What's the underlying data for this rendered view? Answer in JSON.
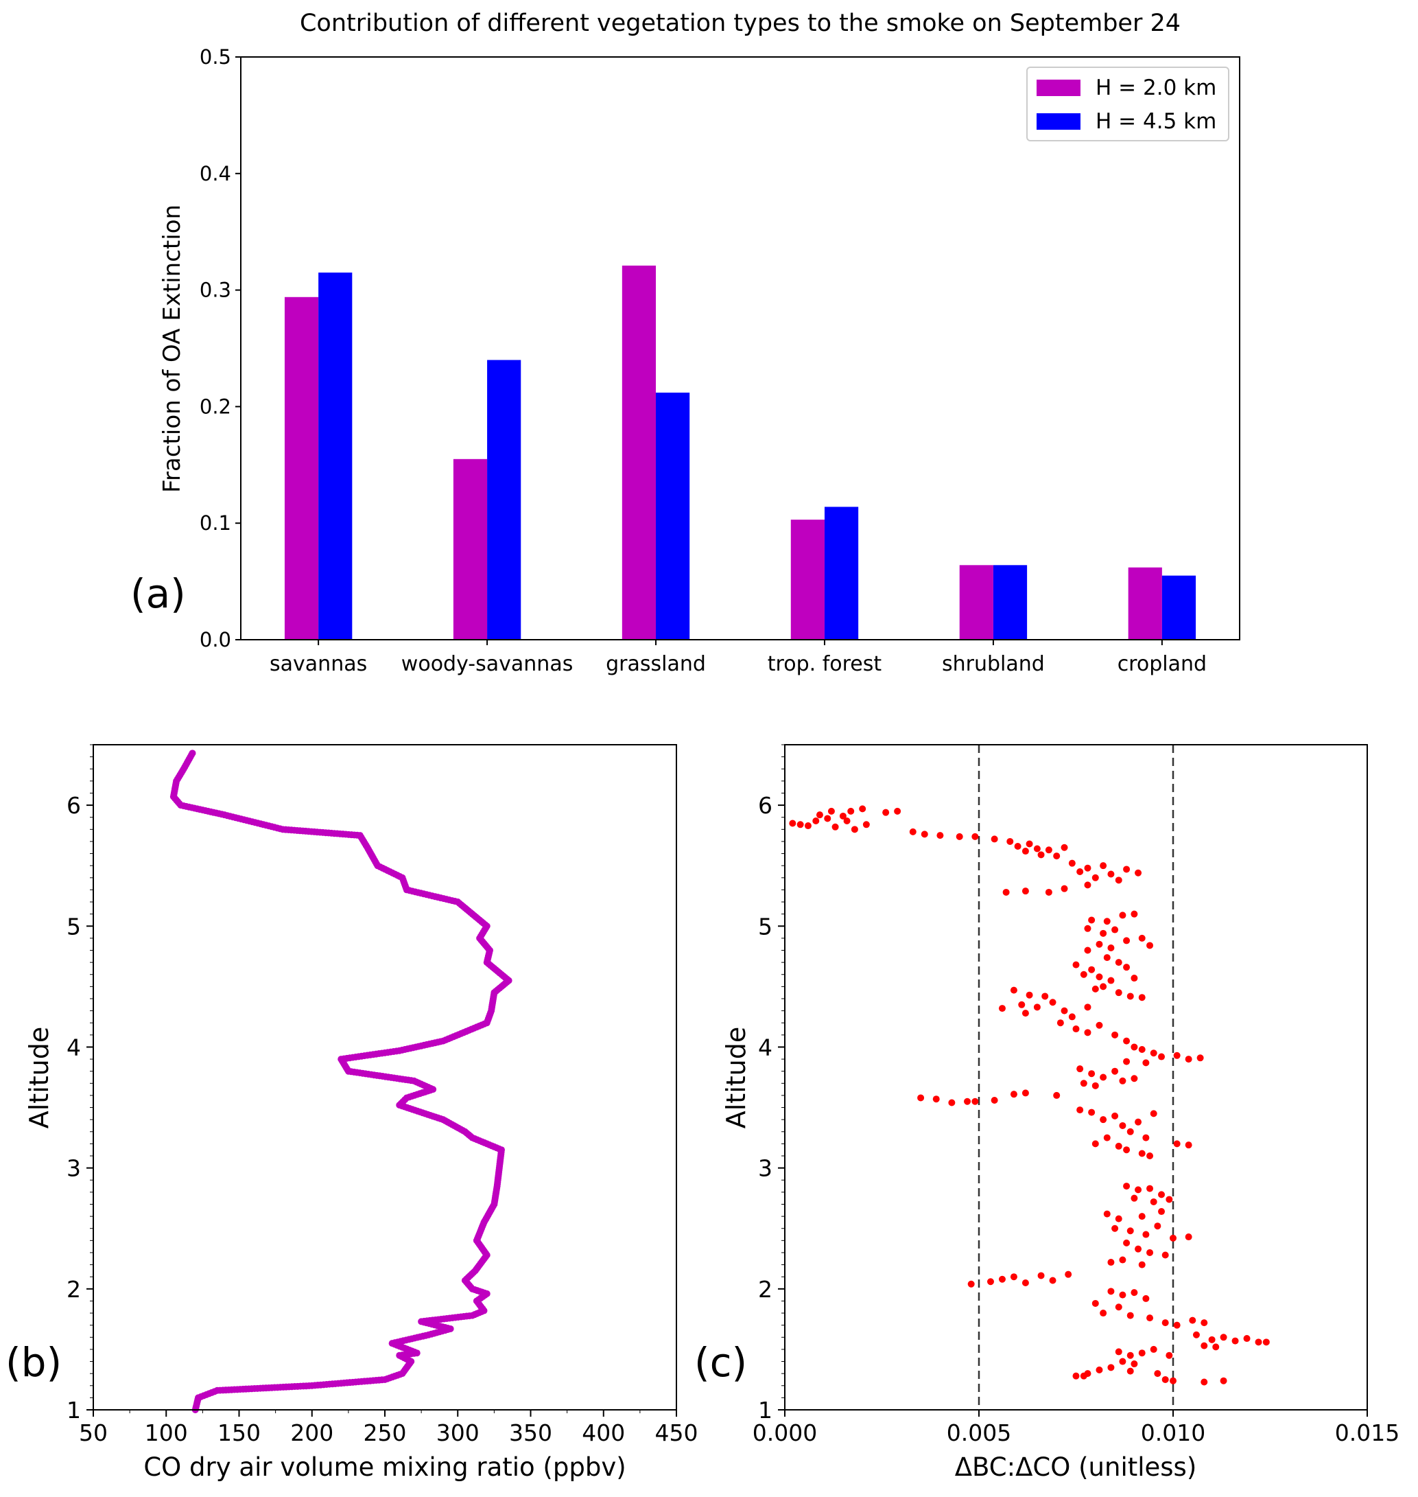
{
  "chart_data": [
    {
      "panel": "(a)",
      "type": "bar",
      "title": "Contribution of different vegetation types to the smoke on September 24",
      "xlabel": "",
      "ylabel": "Fraction of OA Extinction",
      "categories": [
        "savannas",
        "woody-savannas",
        "grassland",
        "trop. forest",
        "shrubland",
        "cropland"
      ],
      "series": [
        {
          "name": "H = 2.0 km",
          "color": "#bf00bf",
          "values": [
            0.294,
            0.155,
            0.321,
            0.103,
            0.064,
            0.062
          ]
        },
        {
          "name": "H = 4.5 km",
          "color": "#0000ff",
          "values": [
            0.315,
            0.24,
            0.212,
            0.114,
            0.064,
            0.055
          ]
        }
      ],
      "ylim": [
        0,
        0.5
      ],
      "yticks": [
        "0.0",
        "0.1",
        "0.2",
        "0.3",
        "0.4",
        "0.5"
      ],
      "legend": "top-right",
      "grid": false
    },
    {
      "panel": "(b)",
      "type": "scatter",
      "xlabel": "CO dry air volume mixing ratio (ppbv)",
      "ylabel": "Altitude",
      "color": "#bf00bf",
      "xlim": [
        50,
        450
      ],
      "ylim": [
        1,
        6.5
      ],
      "xticks": [
        "50",
        "100",
        "150",
        "200",
        "250",
        "300",
        "350",
        "400",
        "450"
      ],
      "yticks": [
        "1",
        "2",
        "3",
        "4",
        "5",
        "6"
      ],
      "profile": [
        [
          120,
          1.0
        ],
        [
          122,
          1.1
        ],
        [
          135,
          1.16
        ],
        [
          200,
          1.2
        ],
        [
          250,
          1.25
        ],
        [
          262,
          1.3
        ],
        [
          268,
          1.4
        ],
        [
          260,
          1.45
        ],
        [
          272,
          1.47
        ],
        [
          255,
          1.55
        ],
        [
          280,
          1.62
        ],
        [
          295,
          1.67
        ],
        [
          275,
          1.73
        ],
        [
          310,
          1.78
        ],
        [
          318,
          1.82
        ],
        [
          313,
          1.9
        ],
        [
          320,
          1.96
        ],
        [
          310,
          2.0
        ],
        [
          305,
          2.07
        ],
        [
          312,
          2.15
        ],
        [
          320,
          2.28
        ],
        [
          313,
          2.4
        ],
        [
          318,
          2.55
        ],
        [
          325,
          2.7
        ],
        [
          327,
          2.85
        ],
        [
          330,
          3.15
        ],
        [
          320,
          3.2
        ],
        [
          310,
          3.25
        ],
        [
          305,
          3.3
        ],
        [
          290,
          3.4
        ],
        [
          260,
          3.52
        ],
        [
          265,
          3.58
        ],
        [
          283,
          3.65
        ],
        [
          270,
          3.72
        ],
        [
          225,
          3.8
        ],
        [
          220,
          3.9
        ],
        [
          260,
          3.97
        ],
        [
          290,
          4.05
        ],
        [
          320,
          4.2
        ],
        [
          323,
          4.3
        ],
        [
          325,
          4.45
        ],
        [
          335,
          4.55
        ],
        [
          320,
          4.7
        ],
        [
          322,
          4.8
        ],
        [
          315,
          4.9
        ],
        [
          320,
          5.0
        ],
        [
          305,
          5.15
        ],
        [
          300,
          5.2
        ],
        [
          265,
          5.3
        ],
        [
          262,
          5.4
        ],
        [
          245,
          5.5
        ],
        [
          238,
          5.65
        ],
        [
          233,
          5.75
        ],
        [
          180,
          5.8
        ],
        [
          140,
          5.92
        ],
        [
          110,
          6.0
        ],
        [
          105,
          6.07
        ],
        [
          107,
          6.2
        ],
        [
          112,
          6.3
        ],
        [
          118,
          6.43
        ]
      ]
    },
    {
      "panel": "(c)",
      "type": "scatter",
      "xlabel": "ΔBC:ΔCO (unitless)",
      "ylabel": "Altitude",
      "color": "#ff0000",
      "xlim": [
        0,
        0.015
      ],
      "ylim": [
        1,
        6.5
      ],
      "xticks": [
        "0.000",
        "0.005",
        "0.010",
        "0.015"
      ],
      "yticks": [
        "1",
        "2",
        "3",
        "4",
        "5",
        "6"
      ],
      "reference_lines_x": [
        0.005,
        0.01
      ],
      "points": [
        [
          0.0002,
          5.85
        ],
        [
          0.0004,
          5.84
        ],
        [
          0.0006,
          5.83
        ],
        [
          0.0008,
          5.87
        ],
        [
          0.0009,
          5.92
        ],
        [
          0.0011,
          5.89
        ],
        [
          0.0012,
          5.95
        ],
        [
          0.0013,
          5.82
        ],
        [
          0.0015,
          5.91
        ],
        [
          0.0016,
          5.87
        ],
        [
          0.0017,
          5.95
        ],
        [
          0.0018,
          5.8
        ],
        [
          0.002,
          5.97
        ],
        [
          0.0021,
          5.84
        ],
        [
          0.0026,
          5.94
        ],
        [
          0.0029,
          5.95
        ],
        [
          0.0033,
          5.78
        ],
        [
          0.0036,
          5.76
        ],
        [
          0.004,
          5.75
        ],
        [
          0.0045,
          5.74
        ],
        [
          0.0049,
          5.74
        ],
        [
          0.0054,
          5.72
        ],
        [
          0.0058,
          5.7
        ],
        [
          0.006,
          5.66
        ],
        [
          0.0062,
          5.62
        ],
        [
          0.0063,
          5.68
        ],
        [
          0.0065,
          5.64
        ],
        [
          0.0066,
          5.59
        ],
        [
          0.0068,
          5.63
        ],
        [
          0.007,
          5.58
        ],
        [
          0.0072,
          5.65
        ],
        [
          0.0074,
          5.52
        ],
        [
          0.0076,
          5.45
        ],
        [
          0.0078,
          5.48
        ],
        [
          0.008,
          5.4
        ],
        [
          0.0082,
          5.5
        ],
        [
          0.0084,
          5.43
        ],
        [
          0.0086,
          5.38
        ],
        [
          0.0088,
          5.47
        ],
        [
          0.0091,
          5.44
        ],
        [
          0.0057,
          5.28
        ],
        [
          0.0062,
          5.29
        ],
        [
          0.0068,
          5.28
        ],
        [
          0.0072,
          5.31
        ],
        [
          0.0078,
          5.34
        ],
        [
          0.0079,
          5.05
        ],
        [
          0.0083,
          5.04
        ],
        [
          0.0087,
          5.09
        ],
        [
          0.009,
          5.1
        ],
        [
          0.0078,
          4.98
        ],
        [
          0.0082,
          4.94
        ],
        [
          0.0085,
          4.97
        ],
        [
          0.0088,
          4.88
        ],
        [
          0.0081,
          4.85
        ],
        [
          0.0084,
          4.82
        ],
        [
          0.0092,
          4.9
        ],
        [
          0.0094,
          4.84
        ],
        [
          0.0078,
          4.8
        ],
        [
          0.0083,
          4.74
        ],
        [
          0.0086,
          4.7
        ],
        [
          0.0075,
          4.68
        ],
        [
          0.0079,
          4.64
        ],
        [
          0.0081,
          4.58
        ],
        [
          0.0084,
          4.55
        ],
        [
          0.0077,
          4.6
        ],
        [
          0.0088,
          4.66
        ],
        [
          0.009,
          4.57
        ],
        [
          0.0082,
          4.5
        ],
        [
          0.0086,
          4.45
        ],
        [
          0.0089,
          4.42
        ],
        [
          0.0092,
          4.41
        ],
        [
          0.008,
          4.48
        ],
        [
          0.0059,
          4.47
        ],
        [
          0.0063,
          4.43
        ],
        [
          0.0067,
          4.42
        ],
        [
          0.0056,
          4.32
        ],
        [
          0.0061,
          4.35
        ],
        [
          0.0062,
          4.28
        ],
        [
          0.0065,
          4.33
        ],
        [
          0.0069,
          4.37
        ],
        [
          0.0072,
          4.3
        ],
        [
          0.0074,
          4.25
        ],
        [
          0.0078,
          4.33
        ],
        [
          0.0071,
          4.2
        ],
        [
          0.0075,
          4.15
        ],
        [
          0.0078,
          4.12
        ],
        [
          0.0081,
          4.18
        ],
        [
          0.0085,
          4.1
        ],
        [
          0.0088,
          4.05
        ],
        [
          0.009,
          4.0
        ],
        [
          0.0092,
          3.98
        ],
        [
          0.0095,
          3.95
        ],
        [
          0.0097,
          3.92
        ],
        [
          0.0101,
          3.93
        ],
        [
          0.0104,
          3.9
        ],
        [
          0.0107,
          3.91
        ],
        [
          0.0088,
          3.88
        ],
        [
          0.0093,
          3.87
        ],
        [
          0.0076,
          3.82
        ],
        [
          0.0079,
          3.78
        ],
        [
          0.0082,
          3.75
        ],
        [
          0.0085,
          3.8
        ],
        [
          0.0087,
          3.72
        ],
        [
          0.0077,
          3.7
        ],
        [
          0.008,
          3.68
        ],
        [
          0.009,
          3.74
        ],
        [
          0.0035,
          3.58
        ],
        [
          0.0039,
          3.57
        ],
        [
          0.0043,
          3.54
        ],
        [
          0.0047,
          3.55
        ],
        [
          0.0049,
          3.55
        ],
        [
          0.0054,
          3.56
        ],
        [
          0.0059,
          3.61
        ],
        [
          0.0062,
          3.62
        ],
        [
          0.007,
          3.6
        ],
        [
          0.0076,
          3.48
        ],
        [
          0.0079,
          3.46
        ],
        [
          0.0082,
          3.4
        ],
        [
          0.0085,
          3.43
        ],
        [
          0.0087,
          3.35
        ],
        [
          0.0089,
          3.3
        ],
        [
          0.0091,
          3.38
        ],
        [
          0.0093,
          3.25
        ],
        [
          0.0095,
          3.45
        ],
        [
          0.008,
          3.2
        ],
        [
          0.0083,
          3.25
        ],
        [
          0.0088,
          3.15
        ],
        [
          0.0092,
          3.12
        ],
        [
          0.0094,
          3.1
        ],
        [
          0.0086,
          3.18
        ],
        [
          0.0101,
          3.2
        ],
        [
          0.0104,
          3.19
        ],
        [
          0.0088,
          2.85
        ],
        [
          0.0091,
          2.82
        ],
        [
          0.0094,
          2.83
        ],
        [
          0.0097,
          2.78
        ],
        [
          0.009,
          2.75
        ],
        [
          0.0095,
          2.72
        ],
        [
          0.0099,
          2.74
        ],
        [
          0.0083,
          2.62
        ],
        [
          0.0086,
          2.58
        ],
        [
          0.0092,
          2.6
        ],
        [
          0.0097,
          2.64
        ],
        [
          0.0085,
          2.5
        ],
        [
          0.0089,
          2.48
        ],
        [
          0.0093,
          2.45
        ],
        [
          0.0096,
          2.52
        ],
        [
          0.01,
          2.42
        ],
        [
          0.0104,
          2.43
        ],
        [
          0.0088,
          2.38
        ],
        [
          0.0091,
          2.33
        ],
        [
          0.0094,
          2.3
        ],
        [
          0.0098,
          2.28
        ],
        [
          0.0084,
          2.22
        ],
        [
          0.0087,
          2.24
        ],
        [
          0.0092,
          2.2
        ],
        [
          0.0048,
          2.04
        ],
        [
          0.0053,
          2.06
        ],
        [
          0.0056,
          2.08
        ],
        [
          0.0059,
          2.1
        ],
        [
          0.0062,
          2.05
        ],
        [
          0.0066,
          2.11
        ],
        [
          0.0069,
          2.07
        ],
        [
          0.0073,
          2.12
        ],
        [
          0.0084,
          1.98
        ],
        [
          0.0087,
          1.95
        ],
        [
          0.009,
          1.97
        ],
        [
          0.0093,
          1.92
        ],
        [
          0.008,
          1.88
        ],
        [
          0.0086,
          1.85
        ],
        [
          0.0082,
          1.8
        ],
        [
          0.0089,
          1.78
        ],
        [
          0.0094,
          1.76
        ],
        [
          0.0098,
          1.72
        ],
        [
          0.0101,
          1.7
        ],
        [
          0.0105,
          1.74
        ],
        [
          0.0108,
          1.72
        ],
        [
          0.0106,
          1.62
        ],
        [
          0.011,
          1.58
        ],
        [
          0.0113,
          1.6
        ],
        [
          0.0116,
          1.57
        ],
        [
          0.0119,
          1.59
        ],
        [
          0.0122,
          1.56
        ],
        [
          0.0124,
          1.56
        ],
        [
          0.0108,
          1.53
        ],
        [
          0.0111,
          1.52
        ],
        [
          0.0086,
          1.48
        ],
        [
          0.0089,
          1.45
        ],
        [
          0.0092,
          1.47
        ],
        [
          0.0095,
          1.5
        ],
        [
          0.0099,
          1.45
        ],
        [
          0.0087,
          1.4
        ],
        [
          0.009,
          1.38
        ],
        [
          0.0084,
          1.35
        ],
        [
          0.0081,
          1.33
        ],
        [
          0.0078,
          1.3
        ],
        [
          0.0075,
          1.28
        ],
        [
          0.0077,
          1.28
        ],
        [
          0.0089,
          1.32
        ],
        [
          0.0096,
          1.3
        ],
        [
          0.01,
          1.24
        ],
        [
          0.0108,
          1.23
        ],
        [
          0.0113,
          1.24
        ],
        [
          0.0098,
          1.25
        ]
      ]
    }
  ],
  "panel_labels": {
    "a": "(a)",
    "b": "(b)",
    "c": "(c)"
  }
}
